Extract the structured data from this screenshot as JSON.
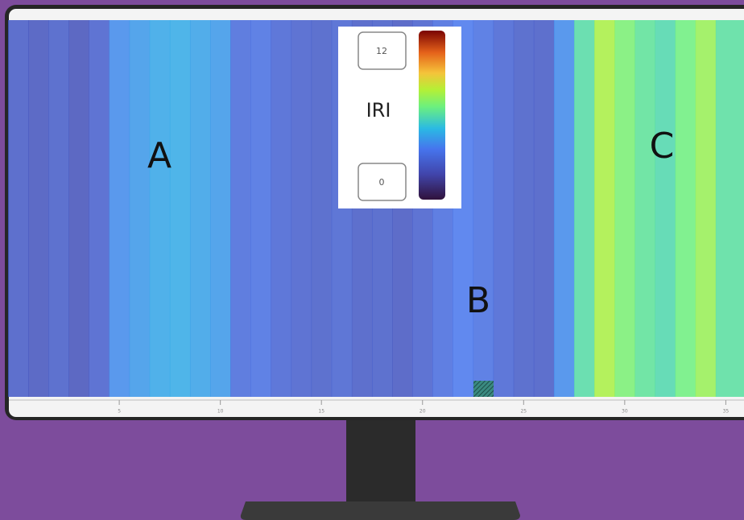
{
  "chart_data": {
    "type": "heatmap-strips",
    "x": [
      0,
      1,
      2,
      3,
      4,
      5,
      6,
      7,
      8,
      9,
      10,
      11,
      12,
      13,
      14,
      15,
      16,
      17,
      18,
      19,
      20,
      21,
      22,
      23,
      24,
      25,
      26,
      27,
      28,
      29,
      30,
      31,
      32,
      33,
      34,
      35
    ],
    "values": [
      2.5,
      2.3,
      2.6,
      2.2,
      2.7,
      4.0,
      4.3,
      4.6,
      4.7,
      4.5,
      4.3,
      3.1,
      3.3,
      2.9,
      2.7,
      2.6,
      2.8,
      2.5,
      2.6,
      2.4,
      2.7,
      3.2,
      3.6,
      3.3,
      2.9,
      2.6,
      2.5,
      4.0,
      6.0,
      7.6,
      6.8,
      6.2,
      5.9,
      6.6,
      7.3,
      6.1
    ],
    "xlim": [
      -0.5,
      35.9
    ],
    "xticks": [
      5,
      10,
      15,
      20,
      25,
      30,
      35
    ],
    "colorbar": {
      "label": "IRI",
      "max": 12,
      "min": 0
    },
    "annotations": [
      "A",
      "B",
      "C"
    ]
  }
}
